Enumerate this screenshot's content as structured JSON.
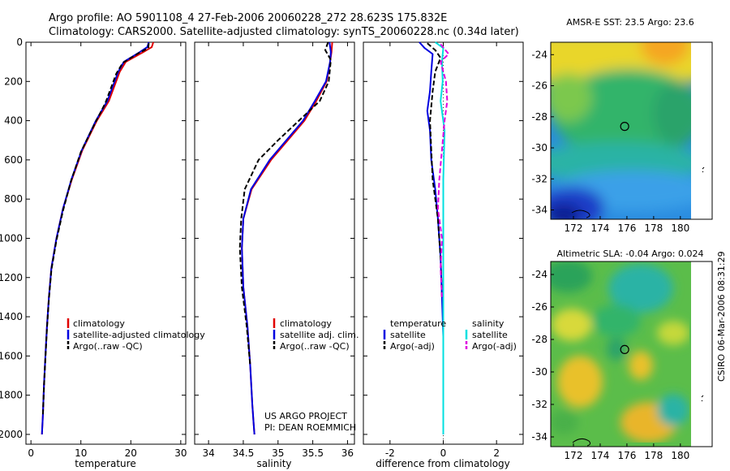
{
  "header": {
    "line1": "Argo profile: AO 5901108_4 27-Feb-2006 20060228_272 28.623S 175.832E",
    "line2": "Climatology: CARS2000. Satellite-adjusted climatology: synTS_20060228.nc (0.34d later)"
  },
  "colors": {
    "climatology": "#e00000",
    "satellite": "#0000e0",
    "argo": "#000000",
    "salinity_satellite": "#00e0e0",
    "salinity_argo": "#e000e0"
  },
  "chart_data": [
    {
      "type": "line",
      "id": "temperature",
      "xlabel": "temperature",
      "ylabel": "",
      "xlim": [
        -1,
        31
      ],
      "ylim": [
        2050,
        0
      ],
      "y_reversed": true,
      "xticks": [
        0,
        10,
        20,
        30
      ],
      "yticks": [
        0,
        200,
        400,
        600,
        800,
        1000,
        1200,
        1400,
        1600,
        1800,
        2000
      ],
      "legend": [
        "climatology",
        "satellite-adjusted climatology",
        "Argo(..raw -QC)"
      ],
      "legend_placement": "lower-middle",
      "series": [
        {
          "name": "climatology",
          "color": "#e00000",
          "dash": "solid",
          "x": [
            24.5,
            24.2,
            22.5,
            19,
            17.8,
            15.6,
            13.2,
            10.3,
            8.2,
            6.4,
            5.1,
            4.1,
            3.6,
            3.2,
            2.9,
            2.6,
            2.4,
            2.3,
            2.2
          ],
          "y": [
            0,
            25,
            50,
            100,
            150,
            300,
            400,
            550,
            700,
            850,
            1000,
            1150,
            1300,
            1450,
            1600,
            1750,
            1900,
            1950,
            2000
          ]
        },
        {
          "name": "satellite-adjusted climatology",
          "color": "#0000e0",
          "dash": "solid",
          "x": [
            23.6,
            23.3,
            21.8,
            18.6,
            17.5,
            15.3,
            13.0,
            10.2,
            8.1,
            6.4,
            5.1,
            4.1,
            3.6,
            3.2,
            2.9,
            2.6,
            2.4,
            2.3,
            2.2
          ],
          "y": [
            0,
            25,
            50,
            100,
            150,
            300,
            400,
            550,
            700,
            850,
            1000,
            1150,
            1300,
            1450,
            1600,
            1750,
            1900,
            1950,
            2000
          ]
        },
        {
          "name": "Argo(..raw -QC)",
          "color": "#000000",
          "dash": "dashed",
          "x": [
            23.6,
            23.5,
            21.6,
            18.4,
            17.1,
            14.9,
            12.7,
            10.0,
            8.0,
            6.4,
            5.1,
            4.1,
            3.6,
            3.2,
            2.9,
            2.6,
            2.4
          ],
          "y": [
            5,
            30,
            55,
            105,
            160,
            310,
            420,
            560,
            710,
            860,
            1010,
            1160,
            1310,
            1460,
            1610,
            1760,
            1900
          ]
        }
      ]
    },
    {
      "type": "line",
      "id": "salinity",
      "xlabel": "salinity",
      "ylabel": "",
      "xlim": [
        33.8,
        36.1
      ],
      "ylim": [
        2050,
        0
      ],
      "y_reversed": true,
      "xticks": [
        34,
        34.5,
        35,
        35.5,
        36
      ],
      "legend": [
        "climatology",
        "satellite adj. clim.",
        "Argo(..raw -QC)"
      ],
      "legend_placement": "lower-middle",
      "annotation": [
        "US ARGO PROJECT",
        "PI: DEAN ROEMMICH"
      ],
      "series": [
        {
          "name": "climatology",
          "color": "#e00000",
          "dash": "solid",
          "x": [
            35.78,
            35.77,
            35.75,
            35.7,
            35.55,
            35.38,
            35.14,
            34.9,
            34.62,
            34.5,
            34.48,
            34.5,
            34.56,
            34.6,
            34.63,
            34.65,
            34.66
          ],
          "y": [
            0,
            50,
            100,
            200,
            300,
            400,
            500,
            600,
            750,
            900,
            1050,
            1250,
            1450,
            1650,
            1850,
            1950,
            2000
          ]
        },
        {
          "name": "satellite adj. clim.",
          "color": "#0000e0",
          "dash": "solid",
          "x": [
            35.74,
            35.76,
            35.75,
            35.69,
            35.53,
            35.36,
            35.12,
            34.88,
            34.61,
            34.5,
            34.48,
            34.5,
            34.56,
            34.6,
            34.63,
            34.65,
            34.66
          ],
          "y": [
            0,
            50,
            100,
            200,
            300,
            400,
            500,
            600,
            750,
            900,
            1050,
            1250,
            1450,
            1650,
            1850,
            1950,
            2000
          ]
        },
        {
          "name": "Argo(..raw -QC)",
          "color": "#000000",
          "dash": "dashed",
          "x": [
            35.72,
            35.68,
            35.76,
            35.73,
            35.6,
            35.3,
            35.0,
            34.72,
            34.52,
            34.47,
            34.45,
            34.48,
            34.55,
            34.6
          ],
          "y": [
            0,
            40,
            90,
            200,
            300,
            400,
            500,
            600,
            750,
            900,
            1050,
            1250,
            1450,
            1650
          ]
        }
      ]
    },
    {
      "type": "line",
      "id": "difference",
      "xlabel": "difference from climatology",
      "ylabel": "",
      "xlim": [
        -3,
        3
      ],
      "ylim": [
        2050,
        0
      ],
      "y_reversed": true,
      "xticks": [
        -2,
        0,
        2
      ],
      "legend_groups": [
        {
          "title": "temperature",
          "items": [
            "satellite",
            "Argo(-adj)"
          ]
        },
        {
          "title": "salinity",
          "items": [
            "satellite",
            "Argo(-adj)"
          ]
        }
      ],
      "legend_placement": "lower-middle",
      "series": [
        {
          "name": "temperature satellite",
          "color": "#0000e0",
          "dash": "solid",
          "x": [
            -0.9,
            -0.7,
            -0.4,
            -0.45,
            -0.5,
            -0.6,
            -0.5,
            -0.45,
            -0.3,
            -0.2,
            -0.1,
            -0.05,
            0,
            0
          ],
          "y": [
            0,
            30,
            60,
            150,
            250,
            350,
            450,
            600,
            750,
            900,
            1100,
            1300,
            1500,
            2000
          ]
        },
        {
          "name": "temperature Argo(-adj)",
          "color": "#000000",
          "dash": "dashed",
          "x": [
            -0.6,
            -0.3,
            -0.1,
            -0.3,
            -0.4,
            -0.5,
            -0.45,
            -0.4,
            -0.2,
            -0.1,
            -0.05
          ],
          "y": [
            5,
            40,
            80,
            150,
            250,
            400,
            550,
            700,
            900,
            1100,
            1300
          ]
        },
        {
          "name": "salinity satellite",
          "color": "#00e0e0",
          "dash": "solid",
          "x": [
            -0.3,
            0.0,
            -0.05,
            -0.02,
            -0.1,
            0.05,
            0.0,
            0,
            0
          ],
          "y": [
            0,
            30,
            100,
            200,
            300,
            450,
            700,
            1000,
            2000
          ]
        },
        {
          "name": "salinity Argo(-adj)",
          "color": "#e000e0",
          "dash": "dashed",
          "x": [
            -0.1,
            0.2,
            -0.1,
            0.1,
            0.15,
            0.05,
            -0.05,
            -0.15,
            -0.2,
            -0.05,
            -0.1,
            -0.05
          ],
          "y": [
            10,
            60,
            100,
            200,
            300,
            400,
            550,
            700,
            850,
            1000,
            1150,
            1300
          ]
        }
      ]
    }
  ],
  "maps": [
    {
      "id": "sst",
      "title": "AMSR-E SST: 23.5 Argo: 23.6",
      "xticks": [
        "172",
        "174",
        "176",
        "178",
        "180"
      ],
      "yticks": [
        "-24",
        "-26",
        "-28",
        "-30",
        "-32",
        "-34"
      ],
      "profile_lon": 175.83,
      "profile_lat": -28.62
    },
    {
      "id": "sla",
      "title": "Altimetric SLA: -0.04 Argo: 0.024",
      "xticks": [
        "172",
        "174",
        "176",
        "178",
        "180"
      ],
      "yticks": [
        "-24",
        "-26",
        "-28",
        "-30",
        "-32",
        "-34"
      ],
      "profile_lon": 175.83,
      "profile_lat": -28.62
    }
  ],
  "footer_stamp": "CSIRO 06-Mar-2006 08:31:29"
}
